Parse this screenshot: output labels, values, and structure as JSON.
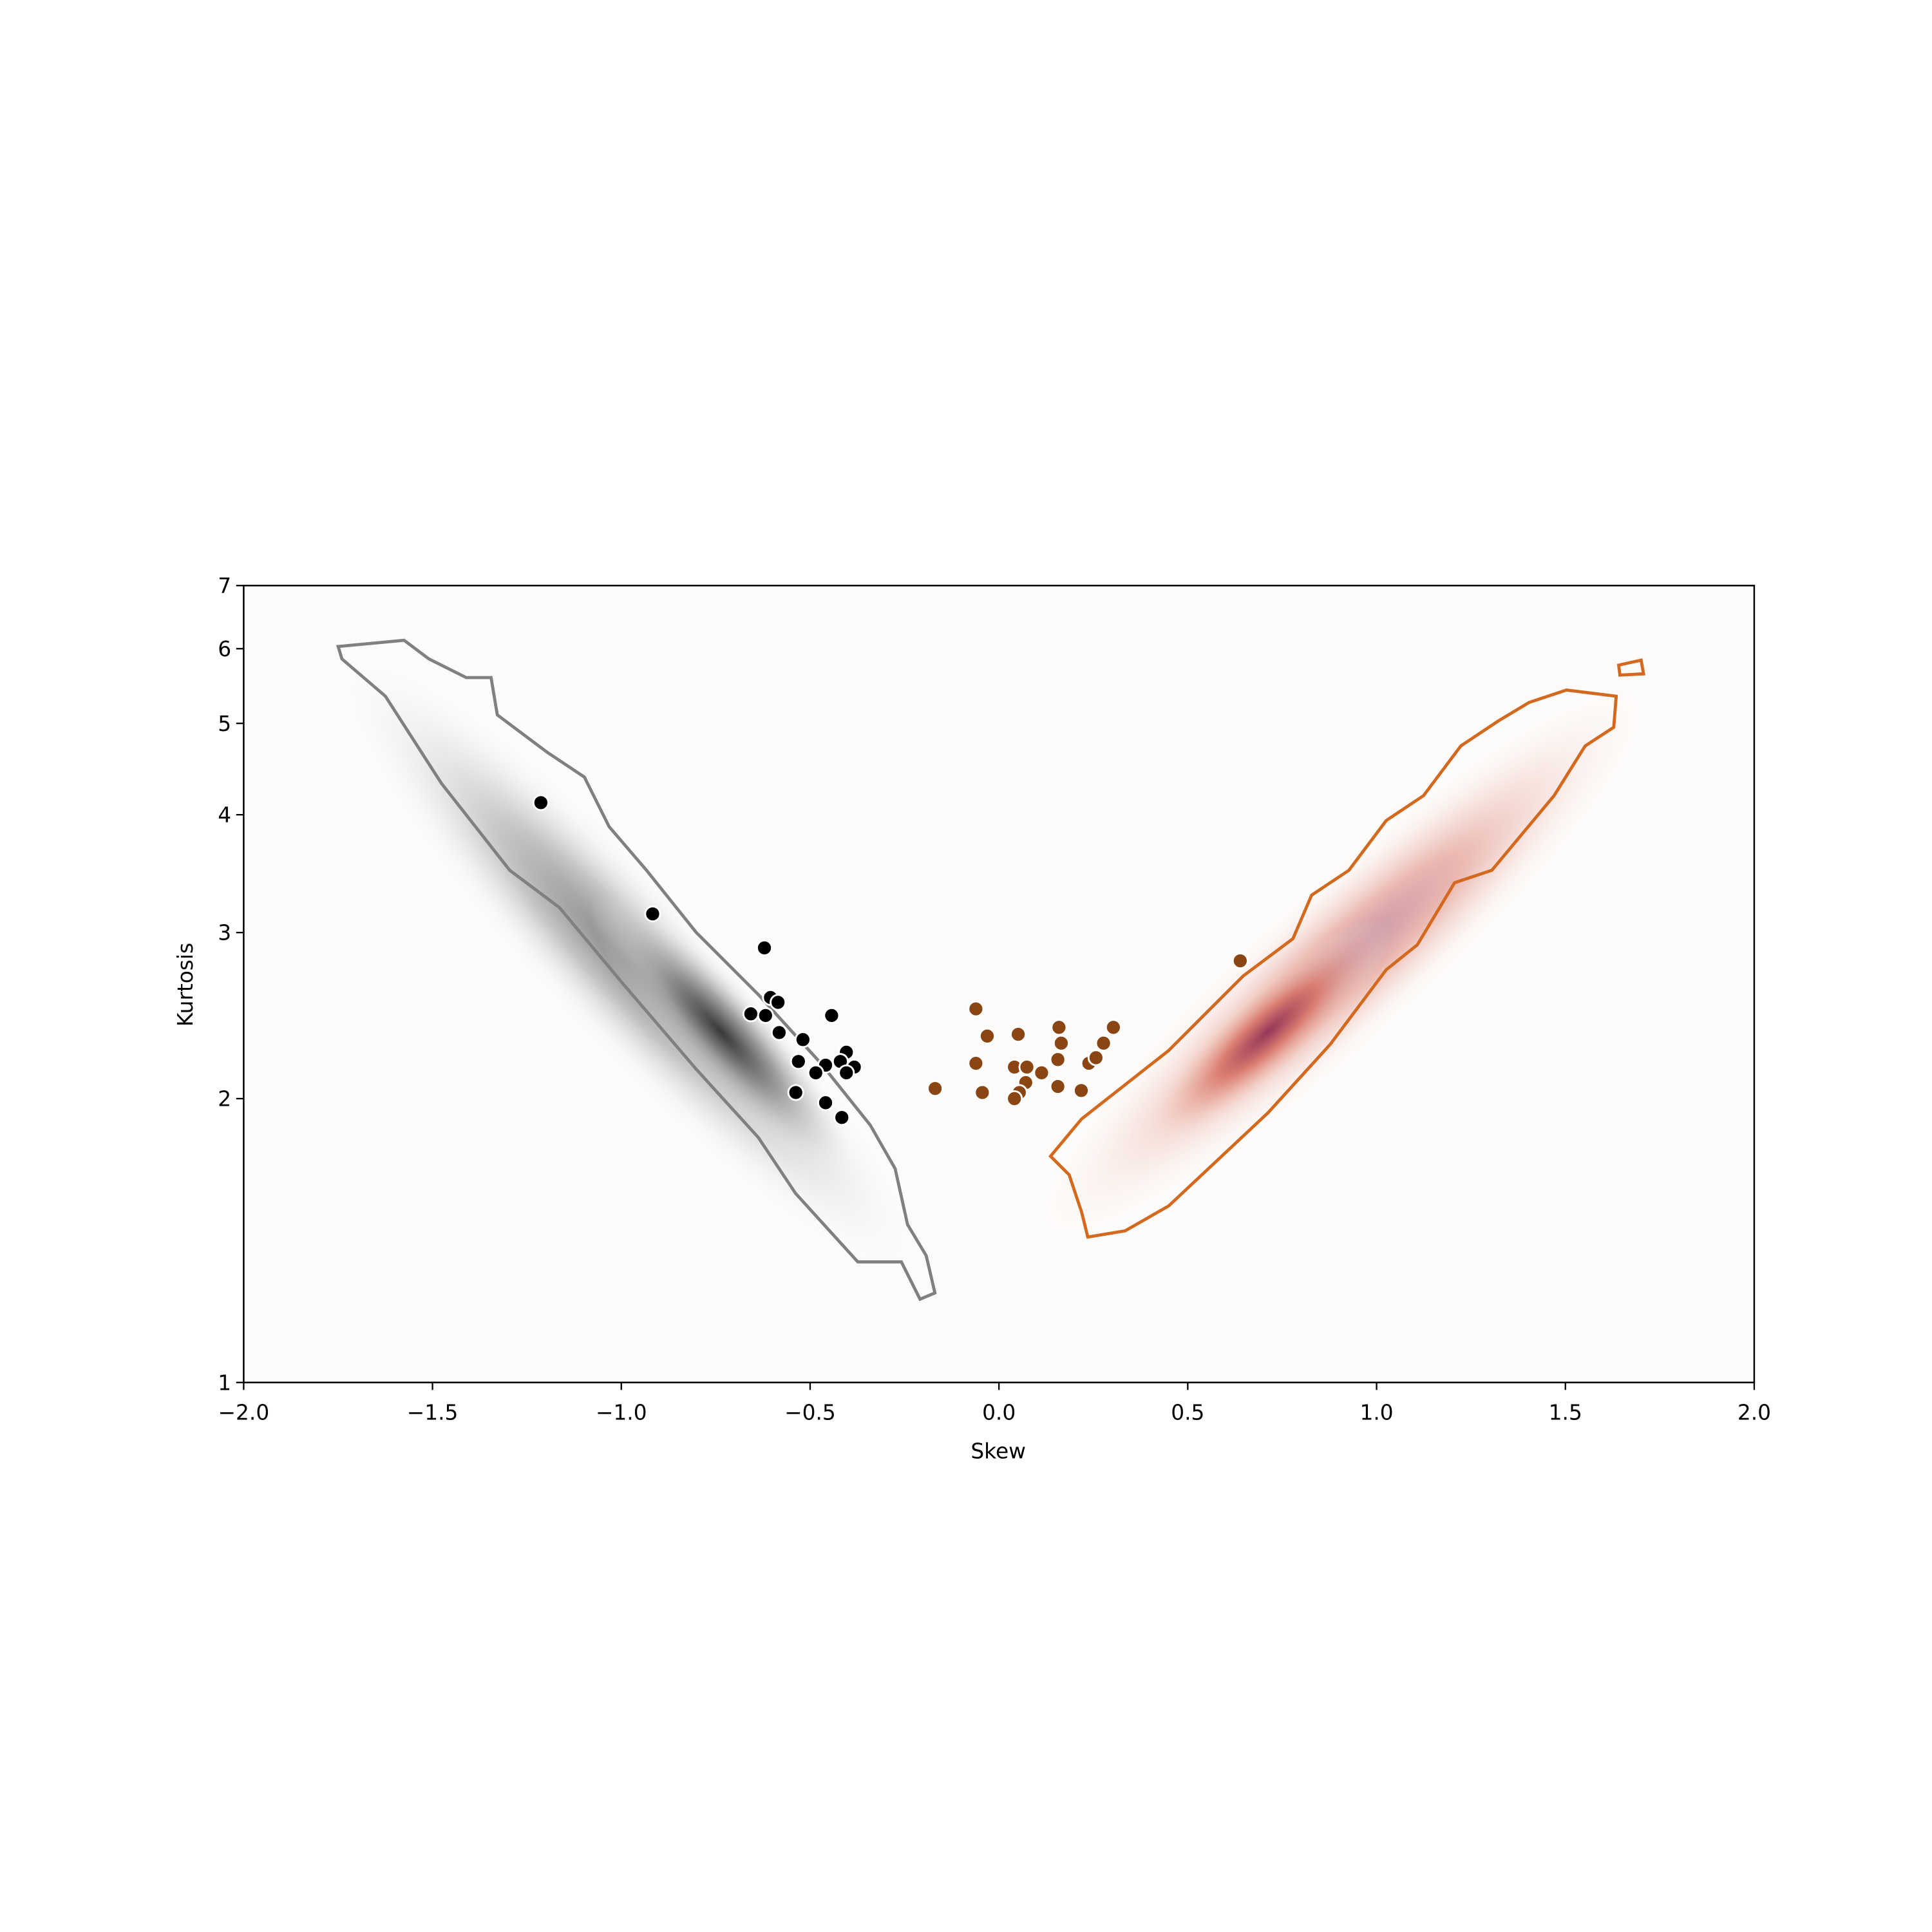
{
  "chart_data": {
    "type": "scatter",
    "xlabel": "Skew",
    "ylabel": "Kurtosis",
    "xlim": [
      -2,
      2
    ],
    "ylim": [
      1,
      7
    ],
    "yscale": "log",
    "xticks": [
      {
        "value": -2,
        "label": "−2.0"
      },
      {
        "value": -1.5,
        "label": "−1.5"
      },
      {
        "value": -1,
        "label": "−1.0"
      },
      {
        "value": -0.5,
        "label": "−0.5"
      },
      {
        "value": 0,
        "label": "0.0"
      },
      0.5,
      {
        "value": 1,
        "label": "1.0"
      },
      1.5,
      {
        "value": 2,
        "label": "2.0"
      }
    ],
    "yticks": [
      1,
      2,
      3,
      4,
      5,
      6,
      7
    ],
    "series": [
      {
        "color": "#000000",
        "x": [
          -1.213,
          -0.917,
          -0.621,
          -0.605,
          -0.585,
          -0.657,
          -0.618,
          -0.582,
          -0.519,
          -0.443,
          -0.404,
          -0.42,
          -0.383,
          -0.459,
          -0.531,
          -0.485,
          -0.404,
          -0.538,
          -0.459,
          -0.416
        ],
        "values": [
          4.12,
          3.14,
          2.89,
          2.56,
          2.53,
          2.46,
          2.45,
          2.35,
          2.31,
          2.45,
          2.24,
          2.19,
          2.16,
          2.17,
          2.19,
          2.13,
          2.13,
          2.03,
          1.98,
          1.91
        ]
      },
      {
        "color": "#8b4513",
        "x": [
          -0.169,
          -0.061,
          -0.031,
          -0.061,
          -0.044,
          0.051,
          0.041,
          0.074,
          0.071,
          0.054,
          0.041,
          0.113,
          0.159,
          0.165,
          0.156,
          0.156,
          0.218,
          0.238,
          0.257,
          0.277,
          0.303,
          0.639
        ],
        "values": [
          2.05,
          2.49,
          2.33,
          2.18,
          2.03,
          2.34,
          2.16,
          2.16,
          2.08,
          2.03,
          2.0,
          2.13,
          2.38,
          2.29,
          2.2,
          2.06,
          2.04,
          2.18,
          2.21,
          2.29,
          2.38,
          2.8
        ]
      }
    ]
  }
}
